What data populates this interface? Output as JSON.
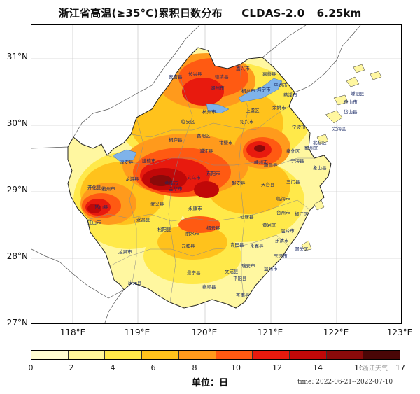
{
  "title": {
    "main": "浙江省高温(≥35°C)累积日数分布",
    "model": "CLDAS-2.0",
    "resolution": "6.25km"
  },
  "axes": {
    "lat_ticks": [
      "31°N",
      "30°N",
      "29°N",
      "28°N",
      "27°N"
    ],
    "lon_ticks": [
      "118°E",
      "119°E",
      "120°E",
      "121°E",
      "122°E",
      "123°E"
    ]
  },
  "legend": {
    "ticks": [
      "0",
      "2",
      "4",
      "6",
      "8",
      "10",
      "12",
      "14",
      "16",
      "17"
    ],
    "colors": [
      "#fffdd2",
      "#fff79a",
      "#ffe94a",
      "#ffc21c",
      "#ff9a1c",
      "#ff5a12",
      "#e81a0e",
      "#c00808",
      "#8a0a0a",
      "#4a0606"
    ],
    "unit_label": "单位：日"
  },
  "time_range": "time: 2022-06-21--2022-07-10",
  "watermark": "浙江天气",
  "places": [
    "嘉兴市",
    "湖州市",
    "杭州市",
    "绍兴市",
    "宁波市",
    "舟山市",
    "金华市",
    "衢州市",
    "丽水市",
    "台州市",
    "温州市",
    "义乌市",
    "东阳市",
    "永康市",
    "武义县",
    "龙游县",
    "江山市",
    "遂昌县",
    "松阳县",
    "龙泉市",
    "庆元县",
    "景宁县",
    "云和县",
    "泰顺县",
    "文成县",
    "瑞安市",
    "平阳县",
    "苍南县",
    "乐清市",
    "玉环市",
    "温岭市",
    "黄岩区",
    "临海市",
    "天台县",
    "三门县",
    "宁海县",
    "象山县",
    "奉化区",
    "新昌县",
    "嵊州市",
    "诸暨市",
    "桐庐县",
    "建德市",
    "淳安县",
    "开化县",
    "常山县",
    "安吉县",
    "德清县",
    "桐乡市",
    "海宁市",
    "平湖市",
    "嘉善县",
    "慈溪市",
    "余姚市",
    "定海区",
    "岱山县",
    "嵊泗县",
    "兰溪市",
    "浦江县",
    "磐安县",
    "仙居县",
    "缙云县",
    "青田县",
    "永嘉县",
    "长兴县",
    "临安区",
    "富阳区",
    "上虞区",
    "北仑区",
    "鄞州区",
    "洞头区",
    "椒江区"
  ]
}
